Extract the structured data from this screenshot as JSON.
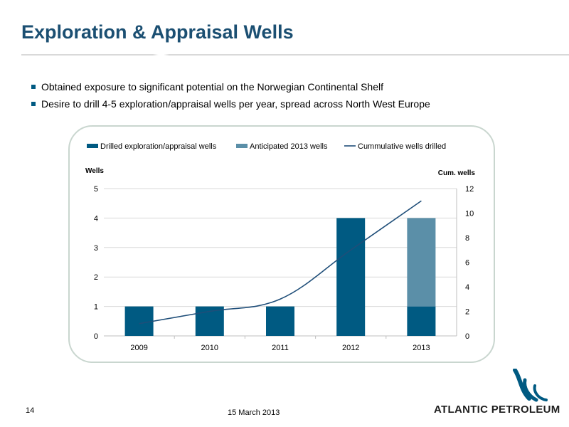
{
  "slide": {
    "title": "Exploration & Appraisal Wells",
    "bullets": [
      "Obtained exposure to significant potential on the Norwegian Continental Shelf",
      "Desire to drill 4-5 exploration/appraisal wells per year, spread across North West Europe"
    ],
    "page_number": "14",
    "date": "15 March 2013",
    "logo_text": "ATLANTIC PETROLEUM",
    "logo_icon": "atlantic-petroleum-wave-icon"
  },
  "colors": {
    "title": "#1b4f72",
    "drilled": "#005a82",
    "anticipated": "#5b8fa8",
    "cumulative": "#1f4e79",
    "frame": "#c9d6cf"
  },
  "chart_data": {
    "type": "bar",
    "categories": [
      "2009",
      "2010",
      "2011",
      "2012",
      "2013"
    ],
    "series": [
      {
        "name": "Drilled exploration/appraisal wells",
        "type": "bar",
        "axis": "left",
        "values": [
          1,
          1,
          1,
          4,
          1
        ]
      },
      {
        "name": "Anticipated 2013 wells",
        "type": "bar",
        "axis": "left",
        "stacked": true,
        "values": [
          0,
          0,
          0,
          0,
          3
        ]
      },
      {
        "name": "Cummulative wells drilled",
        "type": "line",
        "axis": "right",
        "values": [
          1,
          2,
          3,
          7,
          11
        ]
      }
    ],
    "ylabel": "Wells",
    "y2label": "Cum. wells",
    "ylim": [
      0,
      5
    ],
    "y2lim": [
      0,
      12
    ],
    "yticks": [
      "0",
      "1",
      "2",
      "3",
      "4",
      "5"
    ],
    "y2ticks": [
      "0",
      "2",
      "4",
      "6",
      "8",
      "10",
      "12"
    ],
    "legend": "top",
    "grid": true
  }
}
